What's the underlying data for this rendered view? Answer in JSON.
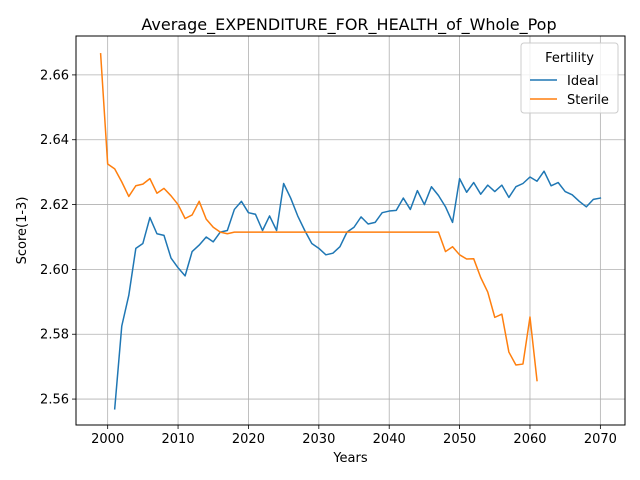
{
  "chart_data": {
    "type": "line",
    "title": "Average_EXPENDITURE_FOR_HEALTH_of_Whole_Pop",
    "xlabel": "Years",
    "ylabel": "Score(1-3)",
    "xlim": [
      1995.5,
      2073.5
    ],
    "ylim": [
      2.552,
      2.672
    ],
    "xticks": [
      2000,
      2010,
      2020,
      2030,
      2040,
      2050,
      2060,
      2070
    ],
    "yticks": [
      2.56,
      2.58,
      2.6,
      2.62,
      2.64,
      2.66
    ],
    "grid": true,
    "legend": {
      "title": "Fertility",
      "placement": "top-right"
    },
    "series": [
      {
        "name": "Ideal",
        "color": "#1f77b4",
        "x": [
          2001,
          2002,
          2003,
          2004,
          2005,
          2006,
          2007,
          2008,
          2009,
          2010,
          2011,
          2012,
          2013,
          2014,
          2015,
          2016,
          2017,
          2018,
          2019,
          2020,
          2021,
          2022,
          2023,
          2024,
          2025,
          2026,
          2027,
          2028,
          2029,
          2030,
          2031,
          2032,
          2033,
          2034,
          2035,
          2036,
          2037,
          2038,
          2039,
          2040,
          2041,
          2042,
          2043,
          2044,
          2045,
          2046,
          2047,
          2048,
          2049,
          2050,
          2051,
          2052,
          2053,
          2054,
          2055,
          2056,
          2057,
          2058,
          2059,
          2060,
          2061,
          2062,
          2063,
          2064,
          2065,
          2066,
          2067,
          2068,
          2069,
          2070
        ],
        "y": [
          2.557,
          2.5825,
          2.592,
          2.6065,
          2.608,
          2.616,
          2.611,
          2.6105,
          2.6035,
          2.6005,
          2.598,
          2.6055,
          2.6075,
          2.61,
          2.6085,
          2.6115,
          2.612,
          2.6185,
          2.621,
          2.6175,
          2.617,
          2.612,
          2.6165,
          2.612,
          2.6265,
          2.622,
          2.6165,
          2.612,
          2.608,
          2.6065,
          2.6045,
          2.605,
          2.607,
          2.6115,
          2.613,
          2.6162,
          2.614,
          2.6145,
          2.6175,
          2.618,
          2.6182,
          2.622,
          2.6185,
          2.6243,
          2.62,
          2.6255,
          2.6228,
          2.6193,
          2.6145,
          2.628,
          2.6238,
          2.6268,
          2.6232,
          2.626,
          2.624,
          2.626,
          2.6222,
          2.6255,
          2.6265,
          2.6285,
          2.6272,
          2.6303,
          2.6258,
          2.6268,
          2.624,
          2.623,
          2.621,
          2.6193,
          2.6216,
          2.622
        ]
      },
      {
        "name": "Sterile",
        "color": "#ff7f0e",
        "x": [
          1999,
          2000,
          2001,
          2002,
          2003,
          2004,
          2005,
          2006,
          2007,
          2008,
          2009,
          2010,
          2011,
          2012,
          2013,
          2014,
          2015,
          2016,
          2017,
          2018,
          2019,
          2020,
          2021,
          2022,
          2023,
          2024,
          2025,
          2026,
          2027,
          2028,
          2029,
          2030,
          2031,
          2032,
          2033,
          2034,
          2035,
          2036,
          2037,
          2038,
          2039,
          2040,
          2041,
          2042,
          2043,
          2044,
          2045,
          2046,
          2047,
          2048,
          2049,
          2050,
          2051,
          2052,
          2053,
          2054,
          2055,
          2056,
          2057,
          2058,
          2059,
          2060,
          2061
        ],
        "y": [
          2.6665,
          2.6325,
          2.631,
          2.627,
          2.6225,
          2.6258,
          2.6263,
          2.628,
          2.6235,
          2.625,
          2.6227,
          2.62,
          2.6157,
          2.6168,
          2.621,
          2.6155,
          2.613,
          2.6115,
          2.611,
          2.6115,
          2.6115,
          2.6115,
          2.6115,
          2.6115,
          2.6115,
          2.6115,
          2.6115,
          2.6115,
          2.6115,
          2.6115,
          2.6115,
          2.6115,
          2.6115,
          2.6115,
          2.6115,
          2.6115,
          2.6115,
          2.6115,
          2.6115,
          2.6115,
          2.6115,
          2.6115,
          2.6115,
          2.6115,
          2.6115,
          2.6115,
          2.6115,
          2.6115,
          2.6115,
          2.6055,
          2.607,
          2.6045,
          2.6032,
          2.6033,
          2.5975,
          2.593,
          2.5852,
          2.5862,
          2.5745,
          2.5705,
          2.5708,
          2.5853,
          2.5657
        ]
      }
    ]
  }
}
